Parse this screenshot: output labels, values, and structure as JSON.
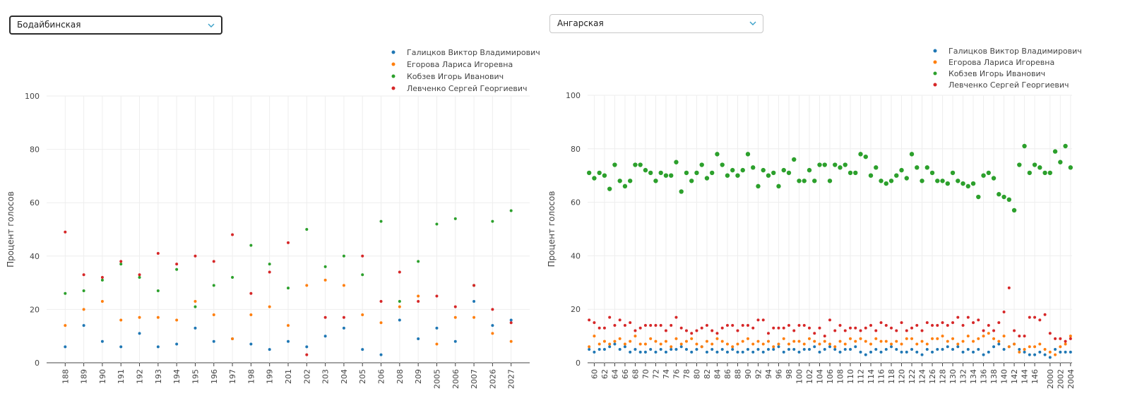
{
  "colors": {
    "galitskov": "#1f77b4",
    "egorova": "#ff7f0e",
    "kobzev": "#2ca02c",
    "levchenko": "#d62728"
  },
  "left_select": {
    "value": "Бодайбинская",
    "icon": "chevron-down-icon"
  },
  "right_select": {
    "value": "Ангарская",
    "icon": "chevron-down-icon"
  },
  "chart_data": [
    {
      "type": "scatter",
      "ylabel": "Процент голосов",
      "ylim": [
        0,
        100
      ],
      "yticks": [
        0,
        20,
        40,
        60,
        80,
        100
      ],
      "grid": true,
      "legend_position": "top-right",
      "categories": [
        "188",
        "189",
        "190",
        "191",
        "192",
        "193",
        "194",
        "195",
        "196",
        "197",
        "198",
        "199",
        "201",
        "202",
        "203",
        "204",
        "205",
        "206",
        "208",
        "209",
        "2005",
        "2006",
        "2007",
        "2026",
        "2027"
      ],
      "series": [
        {
          "name": "Галицков Виктор Владимирович",
          "key": "galitskov",
          "values": [
            6,
            14,
            8,
            6,
            11,
            6,
            7,
            13,
            8,
            9,
            7,
            5,
            8,
            6,
            10,
            13,
            5,
            3,
            16,
            9,
            13,
            8,
            23,
            14,
            16
          ]
        },
        {
          "name": "Егорова Лариса Игоревна",
          "key": "egorova",
          "values": [
            14,
            20,
            23,
            16,
            17,
            17,
            16,
            23,
            18,
            9,
            18,
            21,
            14,
            29,
            31,
            29,
            18,
            15,
            21,
            25,
            7,
            17,
            17,
            11,
            8
          ]
        },
        {
          "name": "Кобзев Игорь Иванович",
          "key": "kobzev",
          "values": [
            26,
            27,
            31,
            37,
            32,
            27,
            35,
            21,
            29,
            32,
            44,
            37,
            28,
            50,
            36,
            40,
            33,
            53,
            23,
            38,
            52,
            54,
            29,
            53,
            57
          ]
        },
        {
          "name": "Левченко Сергей Георгиевич",
          "key": "levchenko",
          "values": [
            49,
            33,
            32,
            38,
            33,
            41,
            37,
            40,
            38,
            48,
            26,
            34,
            45,
            3,
            17,
            17,
            40,
            23,
            34,
            23,
            25,
            21,
            29,
            20,
            15
          ]
        }
      ]
    },
    {
      "type": "scatter",
      "ylabel": "Процент голосов",
      "ylim": [
        0,
        100
      ],
      "yticks": [
        0,
        20,
        40,
        60,
        80,
        100
      ],
      "grid": true,
      "legend_position": "top-right",
      "categories": [
        "59",
        "60",
        "61",
        "62",
        "63",
        "64",
        "65",
        "66",
        "67",
        "68",
        "69",
        "70",
        "71",
        "72",
        "73",
        "74",
        "75",
        "76",
        "77",
        "78",
        "79",
        "80",
        "81",
        "82",
        "83",
        "84",
        "85",
        "86",
        "87",
        "88",
        "89",
        "90",
        "91",
        "92",
        "93",
        "94",
        "95",
        "96",
        "97",
        "98",
        "99",
        "100",
        "101",
        "102",
        "103",
        "104",
        "105",
        "106",
        "107",
        "108",
        "109",
        "110",
        "111",
        "112",
        "113",
        "114",
        "115",
        "116",
        "117",
        "118",
        "119",
        "120",
        "121",
        "122",
        "123",
        "124",
        "125",
        "126",
        "127",
        "128",
        "129",
        "130",
        "131",
        "132",
        "133",
        "134",
        "135",
        "136",
        "137",
        "138",
        "139",
        "140",
        "141",
        "142",
        "143",
        "144",
        "145",
        "146",
        "147",
        "148",
        "2000",
        "2001",
        "2002",
        "2003",
        "2004"
      ],
      "tick_labels": [
        "60",
        "62",
        "64",
        "66",
        "68",
        "70",
        "72",
        "74",
        "76",
        "78",
        "80",
        "82",
        "84",
        "86",
        "88",
        "90",
        "92",
        "94",
        "96",
        "98",
        "100",
        "102",
        "104",
        "106",
        "108",
        "110",
        "112",
        "114",
        "116",
        "118",
        "120",
        "122",
        "124",
        "126",
        "128",
        "130",
        "132",
        "134",
        "136",
        "138",
        "140",
        "142",
        "144",
        "146",
        "2000",
        "2002",
        "2004"
      ],
      "series": [
        {
          "name": "Галицков Виктор Владимирович",
          "key": "galitskov",
          "values": [
            5,
            4,
            5,
            5,
            6,
            7,
            5,
            6,
            4,
            5,
            4,
            4,
            5,
            4,
            5,
            4,
            5,
            5,
            6,
            5,
            4,
            5,
            6,
            4,
            5,
            4,
            5,
            4,
            5,
            4,
            4,
            5,
            4,
            5,
            4,
            5,
            5,
            6,
            4,
            5,
            5,
            4,
            5,
            5,
            6,
            4,
            5,
            6,
            5,
            4,
            5,
            5,
            6,
            4,
            3,
            4,
            5,
            4,
            5,
            6,
            5,
            4,
            4,
            5,
            4,
            3,
            5,
            4,
            5,
            5,
            6,
            5,
            6,
            4,
            5,
            4,
            5,
            3,
            4,
            6,
            7,
            5,
            6,
            7,
            5,
            4,
            3,
            3,
            4,
            3,
            2,
            5,
            4,
            4,
            4
          ]
        },
        {
          "name": "Егорова Лариса Игоревна",
          "key": "egorova",
          "values": [
            6,
            10,
            7,
            8,
            7,
            8,
            9,
            7,
            8,
            10,
            7,
            7,
            9,
            8,
            7,
            8,
            6,
            9,
            7,
            8,
            9,
            7,
            6,
            8,
            7,
            9,
            8,
            7,
            6,
            7,
            8,
            9,
            7,
            8,
            7,
            8,
            6,
            7,
            9,
            7,
            8,
            8,
            7,
            9,
            8,
            7,
            8,
            7,
            6,
            8,
            7,
            9,
            8,
            9,
            8,
            7,
            9,
            8,
            8,
            7,
            8,
            7,
            9,
            9,
            7,
            8,
            7,
            9,
            9,
            10,
            8,
            9,
            7,
            8,
            10,
            8,
            9,
            10,
            11,
            9,
            8,
            10,
            6,
            7,
            4,
            5,
            6,
            6,
            7,
            5,
            4,
            3,
            6,
            7,
            10
          ]
        },
        {
          "name": "Кобзев Игорь Иванович",
          "key": "kobzev",
          "values": [
            71,
            69,
            71,
            70,
            65,
            74,
            68,
            66,
            68,
            74,
            74,
            72,
            71,
            68,
            71,
            70,
            70,
            75,
            64,
            71,
            68,
            71,
            74,
            69,
            71,
            78,
            74,
            70,
            72,
            70,
            72,
            78,
            73,
            66,
            72,
            70,
            71,
            66,
            72,
            71,
            76,
            68,
            68,
            72,
            68,
            74,
            74,
            68,
            74,
            73,
            74,
            71,
            71,
            78,
            77,
            70,
            73,
            68,
            67,
            68,
            70,
            72,
            69,
            78,
            73,
            68,
            73,
            71,
            68,
            68,
            67,
            71,
            68,
            67,
            66,
            67,
            62,
            70,
            71,
            69,
            63,
            62,
            61,
            57,
            74,
            81,
            71,
            74,
            73,
            71,
            71,
            79,
            75,
            81,
            73
          ]
        },
        {
          "name": "Левченко Сергей Георгиевич",
          "key": "levchenko",
          "values": [
            16,
            15,
            13,
            13,
            17,
            14,
            16,
            14,
            15,
            12,
            13,
            14,
            14,
            14,
            14,
            12,
            14,
            17,
            13,
            12,
            11,
            12,
            13,
            14,
            12,
            11,
            13,
            14,
            14,
            12,
            14,
            14,
            13,
            16,
            16,
            11,
            13,
            13,
            13,
            14,
            12,
            14,
            14,
            13,
            11,
            13,
            10,
            16,
            12,
            14,
            12,
            13,
            13,
            12,
            13,
            14,
            12,
            15,
            14,
            13,
            12,
            15,
            12,
            13,
            14,
            12,
            15,
            14,
            14,
            15,
            14,
            15,
            17,
            14,
            17,
            15,
            16,
            12,
            14,
            12,
            15,
            19,
            28,
            12,
            10,
            10,
            17,
            17,
            16,
            18,
            11,
            9,
            9,
            8,
            9
          ]
        }
      ]
    }
  ]
}
